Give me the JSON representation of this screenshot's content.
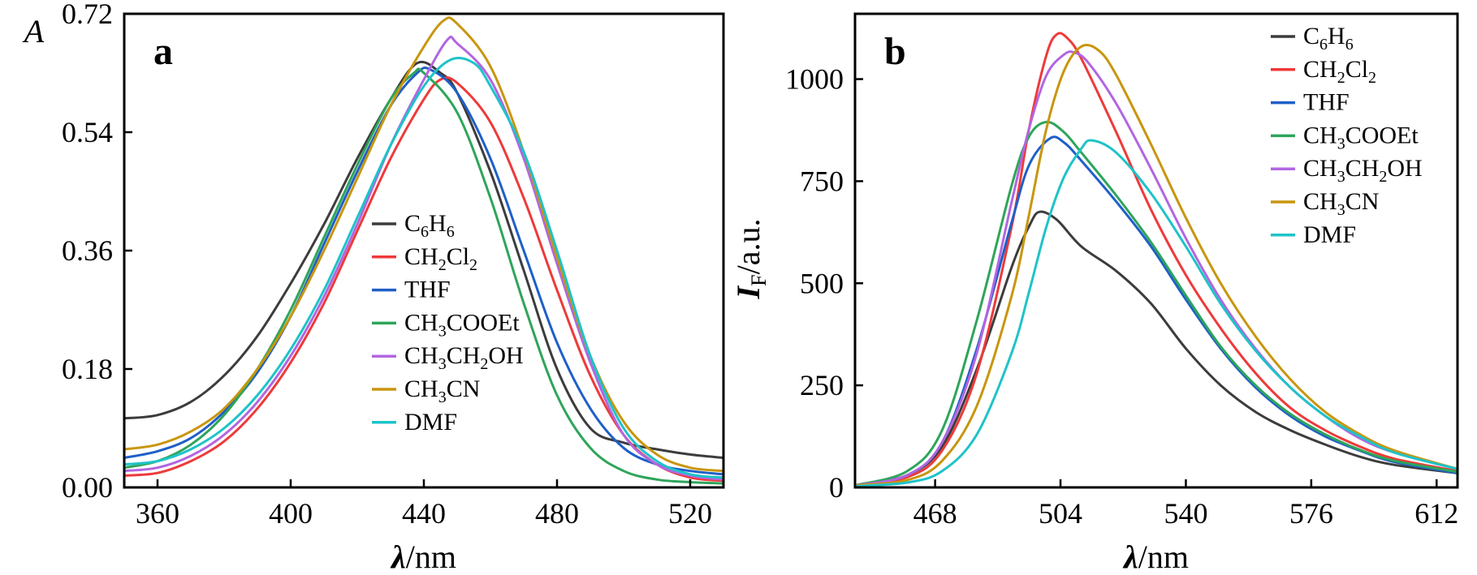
{
  "chart_data": [
    {
      "panel": "a",
      "type": "line",
      "y_title_italic": "A",
      "xlabel_symbol": "λ",
      "xlabel_unit": "/nm",
      "xlim": [
        350,
        530
      ],
      "ylim": [
        0,
        0.72
      ],
      "xticks": [
        360,
        400,
        440,
        480,
        520
      ],
      "yticks": [
        "0.00",
        "0.18",
        "0.36",
        "0.54",
        "0.72"
      ],
      "legend_position": "center-right",
      "series": [
        {
          "name": [
            "C",
            {
              "sub": "6"
            },
            "H",
            {
              "sub": "6"
            }
          ],
          "color": "#3c3c3c",
          "x": [
            350,
            360,
            370,
            380,
            390,
            400,
            410,
            420,
            430,
            438,
            445,
            450,
            460,
            470,
            480,
            490,
            500,
            510,
            520,
            530
          ],
          "y": [
            0.105,
            0.11,
            0.13,
            0.17,
            0.23,
            0.31,
            0.4,
            0.5,
            0.59,
            0.645,
            0.63,
            0.6,
            0.48,
            0.33,
            0.18,
            0.09,
            0.068,
            0.058,
            0.05,
            0.045
          ]
        },
        {
          "name": [
            "CH",
            {
              "sub": "2"
            },
            "Cl",
            {
              "sub": "2"
            }
          ],
          "color": "#ee3a3a",
          "x": [
            350,
            360,
            370,
            380,
            390,
            400,
            410,
            420,
            430,
            440,
            445,
            450,
            460,
            470,
            480,
            490,
            500,
            510,
            520,
            530
          ],
          "y": [
            0.018,
            0.022,
            0.04,
            0.07,
            0.12,
            0.19,
            0.28,
            0.39,
            0.5,
            0.59,
            0.62,
            0.615,
            0.555,
            0.44,
            0.3,
            0.17,
            0.08,
            0.035,
            0.015,
            0.01
          ]
        },
        {
          "name": [
            "THF"
          ],
          "color": "#1f5fc8",
          "x": [
            350,
            360,
            370,
            380,
            390,
            400,
            410,
            420,
            430,
            438,
            442,
            450,
            460,
            470,
            480,
            490,
            500,
            510,
            520,
            530
          ],
          "y": [
            0.045,
            0.055,
            0.075,
            0.115,
            0.175,
            0.26,
            0.37,
            0.48,
            0.58,
            0.63,
            0.635,
            0.6,
            0.5,
            0.36,
            0.22,
            0.12,
            0.06,
            0.035,
            0.025,
            0.02
          ]
        },
        {
          "name": [
            "CH",
            {
              "sub": "3"
            },
            "COOEt"
          ],
          "color": "#2ea55a",
          "x": [
            350,
            360,
            370,
            380,
            390,
            400,
            410,
            420,
            430,
            437,
            440,
            450,
            460,
            470,
            480,
            490,
            500,
            510,
            520,
            530
          ],
          "y": [
            0.03,
            0.04,
            0.065,
            0.11,
            0.18,
            0.27,
            0.38,
            0.49,
            0.59,
            0.63,
            0.63,
            0.57,
            0.44,
            0.28,
            0.14,
            0.06,
            0.025,
            0.012,
            0.008,
            0.006
          ]
        },
        {
          "name": [
            "CH",
            {
              "sub": "3"
            },
            "CH",
            {
              "sub": "2"
            },
            "OH"
          ],
          "color": "#b266e0",
          "x": [
            350,
            360,
            370,
            380,
            390,
            400,
            410,
            420,
            430,
            440,
            447,
            450,
            460,
            470,
            480,
            490,
            500,
            510,
            520,
            530
          ],
          "y": [
            0.025,
            0.03,
            0.048,
            0.08,
            0.13,
            0.2,
            0.29,
            0.4,
            0.52,
            0.62,
            0.68,
            0.675,
            0.62,
            0.5,
            0.34,
            0.19,
            0.08,
            0.035,
            0.018,
            0.012
          ]
        },
        {
          "name": [
            "CH",
            {
              "sub": "3"
            },
            "CN"
          ],
          "color": "#c8960e",
          "x": [
            350,
            360,
            370,
            380,
            390,
            400,
            410,
            420,
            430,
            440,
            446,
            450,
            460,
            470,
            480,
            490,
            500,
            510,
            520,
            530
          ],
          "y": [
            0.058,
            0.065,
            0.085,
            0.12,
            0.18,
            0.26,
            0.36,
            0.47,
            0.58,
            0.67,
            0.71,
            0.705,
            0.64,
            0.51,
            0.35,
            0.2,
            0.1,
            0.05,
            0.03,
            0.025
          ]
        },
        {
          "name": [
            "DMF"
          ],
          "color": "#1ec3c8",
          "x": [
            350,
            360,
            370,
            380,
            390,
            400,
            410,
            420,
            430,
            440,
            448,
            455,
            460,
            470,
            480,
            490,
            500,
            510,
            520,
            530
          ],
          "y": [
            0.035,
            0.04,
            0.058,
            0.09,
            0.14,
            0.21,
            0.3,
            0.41,
            0.52,
            0.61,
            0.65,
            0.645,
            0.61,
            0.51,
            0.36,
            0.2,
            0.09,
            0.04,
            0.02,
            0.015
          ]
        }
      ]
    },
    {
      "panel": "b",
      "type": "line",
      "y_title_italic": "I",
      "y_title_sub": "F",
      "y_title_unit": "/a.u.",
      "xlabel_symbol": "λ",
      "xlabel_unit": "/nm",
      "xlim": [
        445,
        618
      ],
      "ylim": [
        0,
        1160
      ],
      "xticks": [
        468,
        504,
        540,
        576,
        612
      ],
      "yticks": [
        "0",
        "250",
        "500",
        "750",
        "1000"
      ],
      "legend_position": "top-right",
      "series": [
        {
          "name": [
            "C",
            {
              "sub": "6"
            },
            "H",
            {
              "sub": "6"
            }
          ],
          "color": "#3c3c3c",
          "x": [
            445,
            460,
            470,
            480,
            490,
            495,
            498,
            503,
            510,
            520,
            530,
            540,
            550,
            560,
            570,
            580,
            590,
            600,
            618
          ],
          "y": [
            5,
            30,
            100,
            290,
            540,
            640,
            675,
            655,
            590,
            530,
            450,
            340,
            250,
            185,
            140,
            105,
            75,
            55,
            35
          ]
        },
        {
          "name": [
            "CH",
            {
              "sub": "2"
            },
            "Cl",
            {
              "sub": "2"
            }
          ],
          "color": "#ee3a3a",
          "x": [
            445,
            460,
            470,
            480,
            490,
            495,
            500,
            503,
            506,
            510,
            520,
            530,
            540,
            550,
            560,
            570,
            580,
            590,
            600,
            618
          ],
          "y": [
            5,
            25,
            90,
            280,
            640,
            880,
            1060,
            1110,
            1100,
            1050,
            870,
            680,
            520,
            390,
            280,
            195,
            140,
            100,
            70,
            40
          ]
        },
        {
          "name": [
            "THF"
          ],
          "color": "#1f5fc8",
          "x": [
            445,
            460,
            470,
            480,
            490,
            495,
            501,
            505,
            510,
            520,
            530,
            540,
            550,
            560,
            570,
            580,
            590,
            600,
            618
          ],
          "y": [
            5,
            30,
            110,
            340,
            650,
            790,
            855,
            845,
            800,
            700,
            590,
            460,
            340,
            245,
            175,
            125,
            90,
            62,
            35
          ]
        },
        {
          "name": [
            "CH",
            {
              "sub": "3"
            },
            "COOEt"
          ],
          "color": "#2ea55a",
          "x": [
            445,
            460,
            470,
            480,
            490,
            495,
            500,
            505,
            510,
            520,
            530,
            540,
            550,
            560,
            570,
            580,
            590,
            600,
            618
          ],
          "y": [
            5,
            40,
            140,
            410,
            740,
            860,
            895,
            870,
            820,
            715,
            600,
            470,
            345,
            250,
            180,
            130,
            92,
            65,
            38
          ]
        },
        {
          "name": [
            "CH",
            {
              "sub": "3"
            },
            "CH",
            {
              "sub": "2"
            },
            "OH"
          ],
          "color": "#b266e0",
          "x": [
            445,
            460,
            470,
            480,
            490,
            495,
            500,
            505,
            508,
            512,
            520,
            530,
            540,
            550,
            560,
            570,
            580,
            590,
            600,
            618
          ],
          "y": [
            5,
            30,
            110,
            330,
            700,
            880,
            1010,
            1060,
            1065,
            1040,
            940,
            780,
            610,
            460,
            340,
            245,
            175,
            120,
            85,
            45
          ]
        },
        {
          "name": [
            "CH",
            {
              "sub": "3"
            },
            "CN"
          ],
          "color": "#c8960e",
          "x": [
            445,
            460,
            470,
            480,
            490,
            495,
            500,
            505,
            510,
            515,
            520,
            530,
            540,
            550,
            560,
            570,
            580,
            590,
            600,
            618
          ],
          "y": [
            5,
            18,
            65,
            200,
            470,
            670,
            880,
            1020,
            1080,
            1070,
            1010,
            840,
            660,
            500,
            370,
            265,
            185,
            130,
            90,
            45
          ]
        },
        {
          "name": [
            "DMF"
          ],
          "color": "#1ec3c8",
          "x": [
            445,
            460,
            470,
            480,
            490,
            495,
            500,
            505,
            510,
            513,
            520,
            530,
            540,
            550,
            560,
            570,
            580,
            590,
            600,
            618
          ],
          "y": [
            3,
            12,
            40,
            130,
            330,
            480,
            640,
            760,
            830,
            850,
            820,
            720,
            590,
            450,
            335,
            245,
            175,
            125,
            85,
            45
          ]
        }
      ]
    }
  ]
}
